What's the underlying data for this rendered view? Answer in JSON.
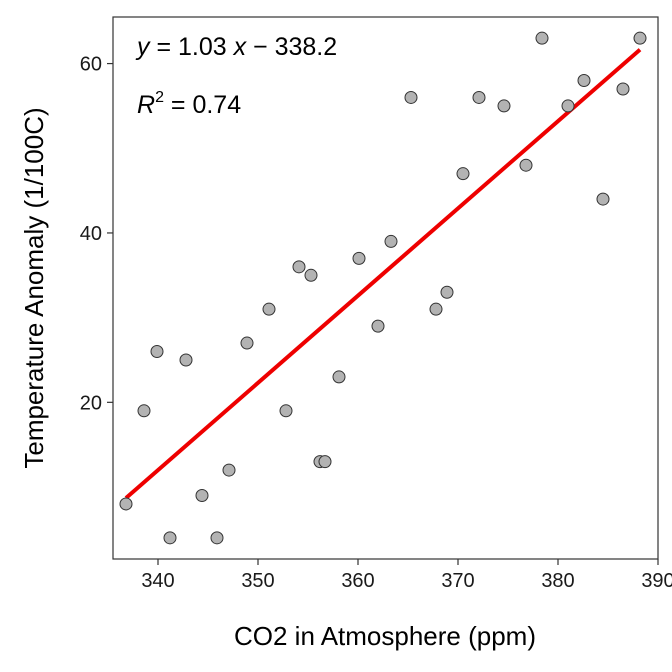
{
  "chart_data": {
    "type": "scatter",
    "xlabel": "CO2 in Atmosphere (ppm)",
    "ylabel": "Temperature Anomaly (1/100C)",
    "xlim": [
      335.5,
      390
    ],
    "ylim": [
      1.5,
      65.5
    ],
    "xticks": [
      340,
      350,
      360,
      370,
      380,
      390
    ],
    "yticks": [
      20,
      40,
      60
    ],
    "grid": false,
    "legend": "none",
    "points": [
      {
        "x": 336.8,
        "y": 8
      },
      {
        "x": 338.6,
        "y": 19
      },
      {
        "x": 339.9,
        "y": 26
      },
      {
        "x": 341.2,
        "y": 4
      },
      {
        "x": 342.8,
        "y": 25
      },
      {
        "x": 344.4,
        "y": 9
      },
      {
        "x": 345.9,
        "y": 4
      },
      {
        "x": 347.1,
        "y": 12
      },
      {
        "x": 348.9,
        "y": 27
      },
      {
        "x": 351.1,
        "y": 31
      },
      {
        "x": 352.8,
        "y": 19
      },
      {
        "x": 354.1,
        "y": 36
      },
      {
        "x": 355.3,
        "y": 35
      },
      {
        "x": 356.2,
        "y": 13
      },
      {
        "x": 356.7,
        "y": 13
      },
      {
        "x": 358.1,
        "y": 23
      },
      {
        "x": 360.1,
        "y": 37
      },
      {
        "x": 362.0,
        "y": 29
      },
      {
        "x": 363.3,
        "y": 39
      },
      {
        "x": 365.3,
        "y": 56
      },
      {
        "x": 367.8,
        "y": 31
      },
      {
        "x": 368.9,
        "y": 33
      },
      {
        "x": 370.5,
        "y": 47
      },
      {
        "x": 372.1,
        "y": 56
      },
      {
        "x": 374.6,
        "y": 55
      },
      {
        "x": 376.8,
        "y": 48
      },
      {
        "x": 378.4,
        "y": 63
      },
      {
        "x": 381.0,
        "y": 55
      },
      {
        "x": 382.6,
        "y": 58
      },
      {
        "x": 384.5,
        "y": 44
      },
      {
        "x": 386.5,
        "y": 57
      },
      {
        "x": 388.2,
        "y": 63
      }
    ],
    "fit": {
      "slope": 1.03,
      "intercept": -338.2,
      "x_range": [
        336.8,
        388.2
      ],
      "color": "#ee0000"
    },
    "point_fill": "#b3b3b3",
    "point_stroke": "#333333",
    "annotations": {
      "eq_y": "y",
      "eq_rest": " = 1.03 ",
      "eq_x": "x",
      "eq_tail": " − 338.2",
      "r2_r": "R",
      "r2_sup": "2",
      "r2_rest": " = 0.74"
    }
  }
}
